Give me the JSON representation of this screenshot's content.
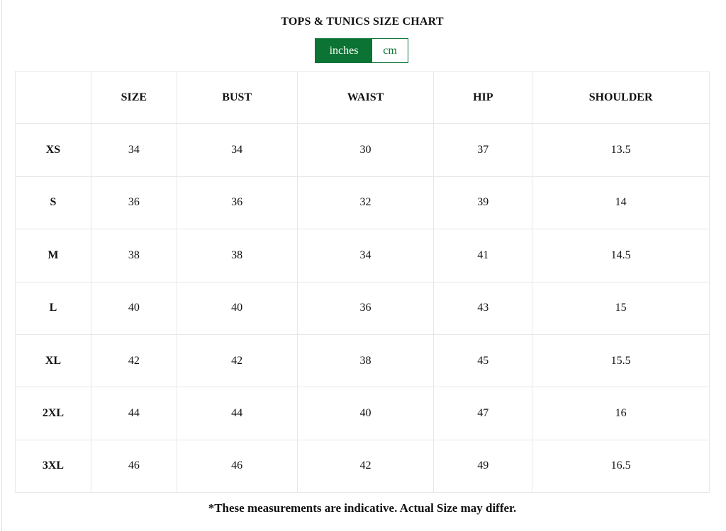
{
  "title": "TOPS & TUNICS SIZE CHART",
  "units": {
    "options": [
      "inches",
      "cm"
    ],
    "selected": "inches"
  },
  "accent_color": "#0b7333",
  "table": {
    "headers": [
      "",
      "SIZE",
      "BUST",
      "WAIST",
      "HIP",
      "SHOULDER"
    ],
    "rows": [
      [
        "XS",
        "34",
        "34",
        "30",
        "37",
        "13.5"
      ],
      [
        "S",
        "36",
        "36",
        "32",
        "39",
        "14"
      ],
      [
        "M",
        "38",
        "38",
        "34",
        "41",
        "14.5"
      ],
      [
        "L",
        "40",
        "40",
        "36",
        "43",
        "15"
      ],
      [
        "XL",
        "42",
        "42",
        "38",
        "45",
        "15.5"
      ],
      [
        "2XL",
        "44",
        "44",
        "40",
        "47",
        "16"
      ],
      [
        "3XL",
        "46",
        "46",
        "42",
        "49",
        "16.5"
      ]
    ]
  },
  "note": "*These measurements are indicative. Actual Size may differ."
}
